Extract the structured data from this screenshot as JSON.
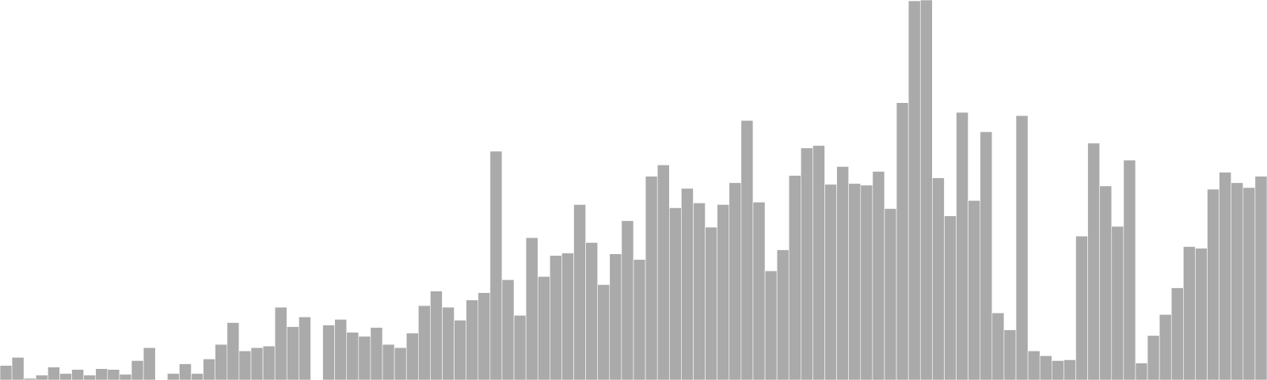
{
  "chart_data": {
    "type": "bar",
    "color": "#aaaaaa",
    "ylim": [
      0,
      470
    ],
    "values": [
      18,
      28,
      2,
      6,
      16,
      8,
      13,
      6,
      14,
      13,
      7,
      24,
      40,
      0,
      8,
      20,
      8,
      26,
      44,
      71,
      36,
      40,
      42,
      90,
      66,
      78,
      0,
      68,
      75,
      59,
      54,
      65,
      44,
      40,
      58,
      92,
      110,
      90,
      74,
      99,
      108,
      283,
      124,
      80,
      176,
      128,
      154,
      157,
      217,
      170,
      118,
      156,
      197,
      149,
      252,
      266,
      213,
      237,
      219,
      189,
      217,
      244,
      321,
      220,
      135,
      161,
      253,
      287,
      290,
      242,
      264,
      243,
      241,
      258,
      212,
      343,
      469,
      470,
      250,
      203,
      331,
      222,
      307,
      83,
      62,
      327,
      36,
      30,
      24,
      25,
      178,
      293,
      240,
      190,
      272,
      21,
      55,
      81,
      114,
      165,
      163,
      236,
      257,
      244,
      238,
      252
    ]
  }
}
